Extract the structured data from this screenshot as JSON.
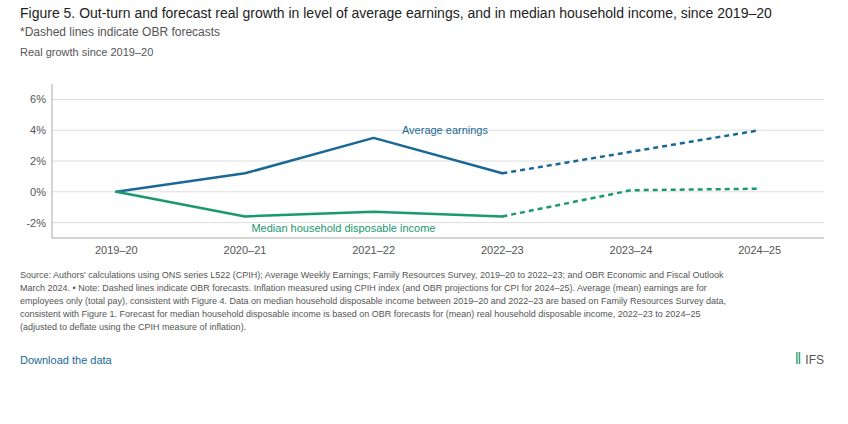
{
  "chart_data": {
    "type": "line",
    "title": "Figure 5. Out-turn and forecast real growth in level of average earnings, and in median household income, since 2019–20",
    "subtitle": "*Dashed lines indicate OBR forecasts",
    "ylabel": "Real growth since 2019–20",
    "categories": [
      "2019–20",
      "2020–21",
      "2021–22",
      "2022–23",
      "2023–24",
      "2024–25"
    ],
    "series": [
      {
        "name": "Average earnings",
        "color": "#1a6896",
        "line_style": "solid",
        "values": [
          0.0,
          1.2,
          3.5,
          1.2,
          null,
          null
        ]
      },
      {
        "color": "#1a6896",
        "line_style": "dashed",
        "values": [
          null,
          null,
          null,
          1.2,
          2.6,
          4.0
        ]
      },
      {
        "name": "Median household disposable income",
        "color": "#1a9970",
        "line_style": "solid",
        "values": [
          0.0,
          -1.6,
          -1.3,
          -1.6,
          null,
          null
        ]
      },
      {
        "color": "#1a9970",
        "line_style": "dashed",
        "values": [
          null,
          null,
          null,
          -1.6,
          0.1,
          0.2
        ]
      }
    ],
    "ylim": [
      -3.0,
      7.0
    ],
    "yticks": [
      {
        "value": -2,
        "label": "-2%"
      },
      {
        "value": 0,
        "label": "0%"
      },
      {
        "value": 2,
        "label": "2%"
      },
      {
        "value": 4,
        "label": "4%"
      },
      {
        "value": 6,
        "label": "6%"
      }
    ],
    "grid": true,
    "annotations": [
      {
        "text": "Source: Authors' calculations using ONS series L522 (CPIH); Average Weekly Earnings; Family Resources Survey, 2019–20 to 2022–23; and OBR Economic and Fiscal Outlook\nMarch 2024. • Note: Dashed lines indicate OBR forecasts. Inflation measured using CPIH index (and OBR projections for CPI for 2024–25). Average (mean) earnings are for\nemployees only (total pay), consistent with Figure 4. Data on median household disposable income between 2019–20 and 2022–23 are based on Family Resources Survey data,\nconsistent with Figure 1. Forecast for median household disposable income is based on OBR forecasts for (mean) real household disposable income, 2022–23 to 2024–25\n(adjusted to deflate using the CPIH measure of inflation)."
      },
      {
        "text": "Download the data",
        "color": "#1a6896"
      },
      {
        "text": "IFS"
      },
      {
        "text": "‖",
        "color": "#1a9970"
      }
    ]
  }
}
